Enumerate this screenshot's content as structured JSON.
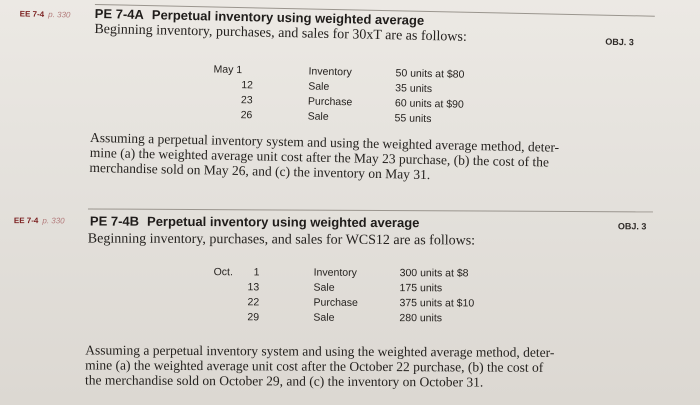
{
  "problem_a": {
    "ref": "EE 7-4",
    "ref_page": "p. 330",
    "code": "PE 7-4A",
    "title": "Perpetual inventory using weighted average",
    "objective": "OBJ. 3",
    "subtitle": "Beginning inventory, purchases, and sales for 30xT are as follows:",
    "rows": [
      {
        "date": "May 1",
        "type": "Inventory",
        "detail": "50 units at $80"
      },
      {
        "date": "12",
        "type": "Sale",
        "detail": "35 units"
      },
      {
        "date": "23",
        "type": "Purchase",
        "detail": "60 units at $90"
      },
      {
        "date": "26",
        "type": "Sale",
        "detail": "55 units"
      }
    ],
    "paragraph_lines": [
      "Assuming a perpetual inventory system and using the weighted average method, deter-",
      "mine (a) the weighted average unit cost after the May 23 purchase, (b) the cost of the",
      "merchandise sold on May 26, and (c) the inventory on May 31."
    ]
  },
  "problem_b": {
    "ref": "EE 7-4",
    "ref_page": "p. 330",
    "code": "PE 7-4B",
    "title": "Perpetual inventory using weighted average",
    "objective": "OBJ. 3",
    "subtitle": "Beginning inventory, purchases, and sales for WCS12 are as follows:",
    "rows": [
      {
        "month": "Oct.",
        "day": "1",
        "type": "Inventory",
        "detail": "300 units at $8"
      },
      {
        "month": "",
        "day": "13",
        "type": "Sale",
        "detail": "175 units"
      },
      {
        "month": "",
        "day": "22",
        "type": "Purchase",
        "detail": "375 units at $10"
      },
      {
        "month": "",
        "day": "29",
        "type": "Sale",
        "detail": "280 units"
      }
    ],
    "paragraph_lines": [
      "Assuming a perpetual inventory system and using the weighted average method, deter-",
      "mine (a) the weighted average unit cost after the October 22 purchase, (b) the cost of",
      "the merchandise sold on October 29, and (c) the inventory on October 31."
    ]
  }
}
